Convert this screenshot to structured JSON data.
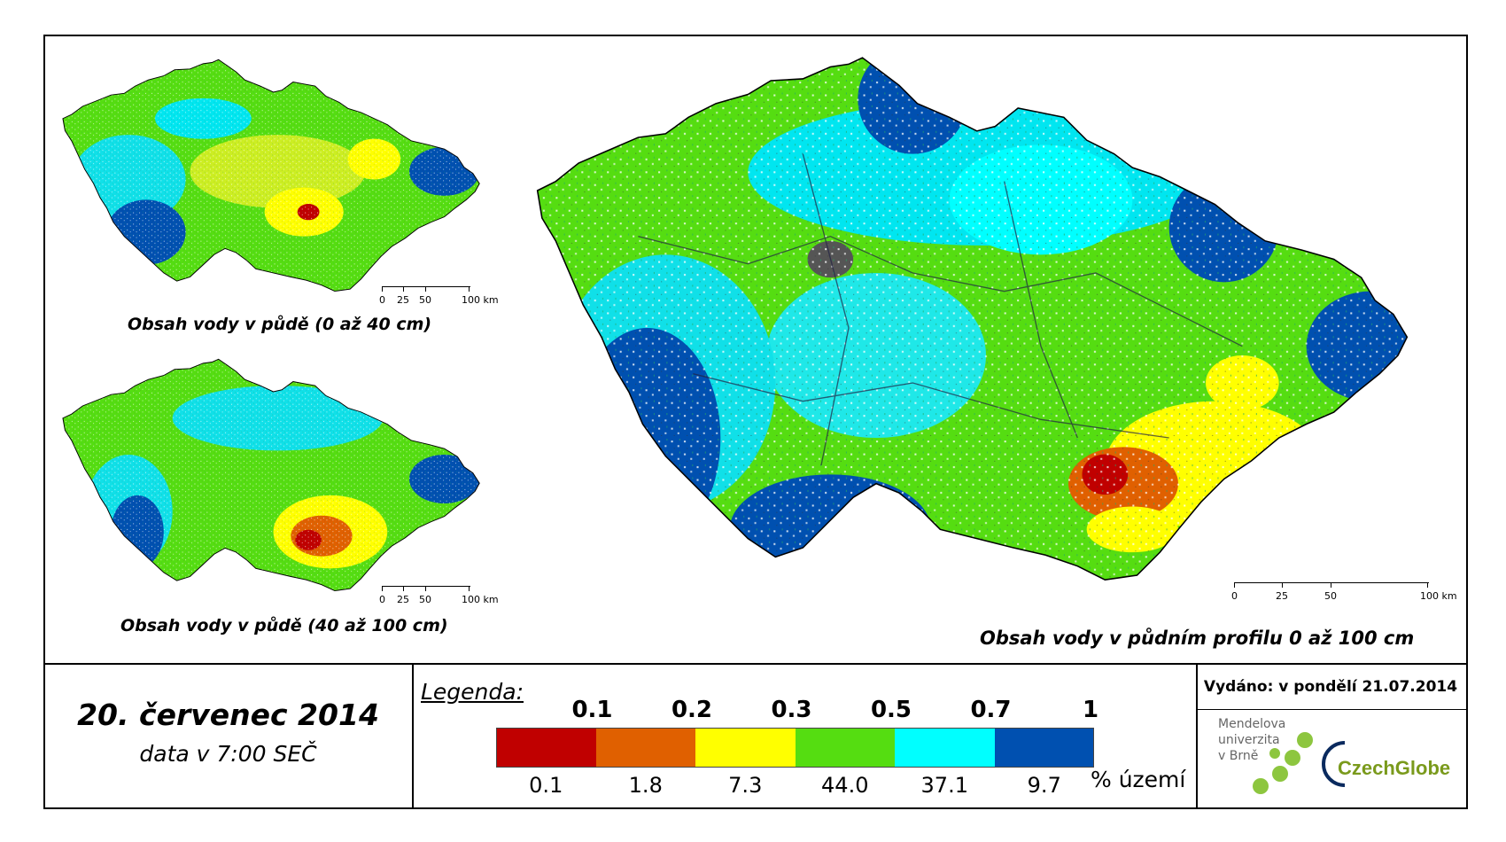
{
  "maps": {
    "top_small": {
      "title": "Obsah vody v půdě (0 až 40 cm)"
    },
    "bottom_small": {
      "title": "Obsah vody v půdě (40 až 100 cm)"
    },
    "large": {
      "title": "Obsah vody v půdním profilu 0 až 100 cm"
    }
  },
  "scale": {
    "labels": [
      "0",
      "25",
      "50",
      "100 km"
    ]
  },
  "footer": {
    "date": "20. červenec 2014",
    "data_time": "data v 7:00 SEČ",
    "issued": "Vydáno: v pondělí 21.07.2014"
  },
  "legend": {
    "title": "Legenda:",
    "thresholds": [
      "0.1",
      "0.2",
      "0.3",
      "0.5",
      "0.7",
      "1"
    ],
    "colors": [
      "#c00000",
      "#e06000",
      "#ffff00",
      "#55dd11",
      "#00ffff",
      "#0050b0"
    ],
    "percentages": [
      "0.1",
      "1.8",
      "7.3",
      "44.0",
      "37.1",
      "9.7"
    ],
    "unit": "% území"
  },
  "logos": {
    "mendel_lines": [
      "Mendelova",
      "univerzita",
      "v Brně"
    ],
    "czechglobe": "CzechGlobe"
  }
}
